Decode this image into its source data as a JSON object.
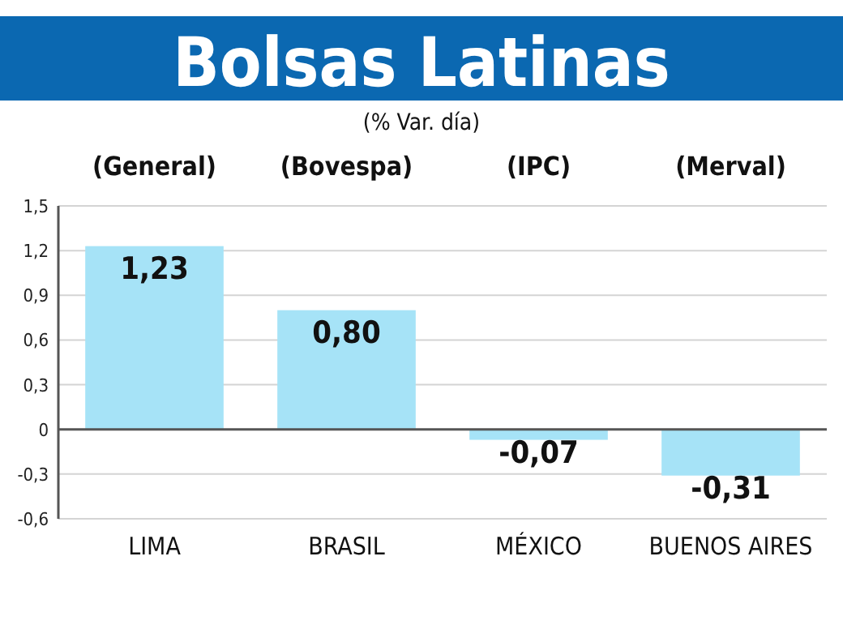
{
  "chart_data": {
    "type": "bar",
    "title": "Bolsas Latinas",
    "subtitle": "(% Var. día)",
    "categories": [
      "LIMA",
      "BRASIL",
      "MÉXICO",
      "BUENOS AIRES"
    ],
    "values": [
      1.23,
      0.8,
      -0.07,
      -0.31
    ],
    "color": "#a6e3f7",
    "value_labels": [
      "1,23",
      "0,80",
      "-0,07",
      "-0,31"
    ],
    "annotations": [
      "(General)",
      "(Bovespa)",
      "(IPC)",
      "(Merval)"
    ],
    "ylim": [
      -0.6,
      1.5
    ],
    "yticks": [
      {
        "value": -0.6,
        "label": "-0,6"
      },
      {
        "value": -0.3,
        "label": "-0,3"
      },
      0,
      {
        "value": 0.3,
        "label": "0,3"
      },
      {
        "value": 0.6,
        "label": "0,6"
      },
      {
        "value": 0.9,
        "label": "0,9"
      },
      {
        "value": 1.2,
        "label": "1,2"
      },
      {
        "value": 1.5,
        "label": "1,5"
      }
    ],
    "grid": "y"
  }
}
